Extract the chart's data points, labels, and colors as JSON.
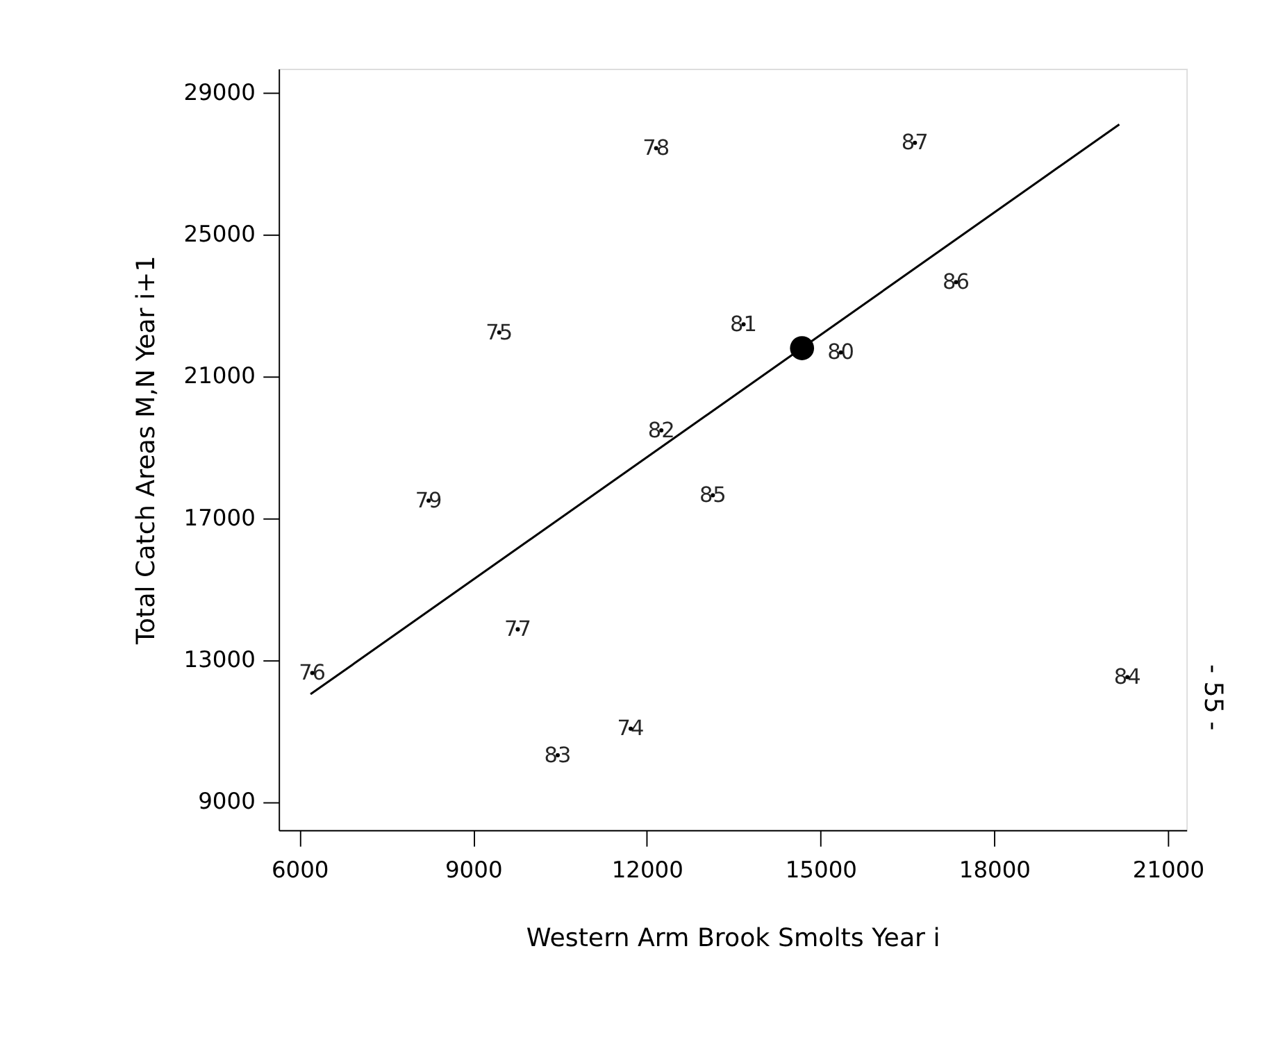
{
  "chart_data": {
    "type": "scatter",
    "xlabel": "Western Arm Brook Smolts Year i",
    "ylabel": "Total Catch Areas M,N Year i+1",
    "xlim": [
      5640,
      21320
    ],
    "ylim": [
      8200,
      29670
    ],
    "xticks": [
      6000,
      9000,
      12000,
      15000,
      18000,
      21000
    ],
    "yticks": [
      9000,
      13000,
      17000,
      21000,
      25000,
      29000
    ],
    "grid": false,
    "series": [
      {
        "type": "scatter",
        "color": "#000000",
        "marker": "circle",
        "x": [
          14680
        ],
        "values": [
          21790
        ]
      },
      {
        "type": "line",
        "color": "#000000",
        "marker": "none",
        "line_style": "solid",
        "x": [
          6190,
          20160
        ],
        "values": [
          12030,
          28100
        ]
      },
      {
        "name": "74",
        "color": "#000000",
        "marker": "circle",
        "x": [
          11720
        ],
        "values": [
          11060
        ]
      },
      {
        "name": "75",
        "color": "#000000",
        "marker": "circle",
        "x": [
          9450
        ],
        "values": [
          22230
        ]
      },
      {
        "name": "76",
        "color": "#000000",
        "marker": "circle",
        "x": [
          6220
        ],
        "values": [
          12630
        ]
      },
      {
        "name": "77",
        "color": "#000000",
        "marker": "circle",
        "x": [
          9770
        ],
        "values": [
          13860
        ]
      },
      {
        "name": "78",
        "color": "#000000",
        "marker": "circle",
        "x": [
          12160
        ],
        "values": [
          27430
        ]
      },
      {
        "name": "79",
        "color": "#000000",
        "marker": "circle",
        "x": [
          8230
        ],
        "values": [
          17490
        ]
      },
      {
        "name": "80",
        "color": "#000000",
        "marker": "circle",
        "x": [
          15350
        ],
        "values": [
          21670
        ]
      },
      {
        "name": "81",
        "color": "#000000",
        "marker": "circle",
        "x": [
          13670
        ],
        "values": [
          22460
        ]
      },
      {
        "name": "82",
        "color": "#000000",
        "marker": "circle",
        "x": [
          12250
        ],
        "values": [
          19470
        ]
      },
      {
        "name": "83",
        "color": "#000000",
        "marker": "circle",
        "x": [
          10460
        ],
        "values": [
          10310
        ]
      },
      {
        "name": "84",
        "color": "#000000",
        "marker": "circle",
        "x": [
          20300
        ],
        "values": [
          12510
        ]
      },
      {
        "name": "85",
        "color": "#000000",
        "marker": "circle",
        "x": [
          13140
        ],
        "values": [
          17640
        ]
      },
      {
        "name": "86",
        "color": "#000000",
        "marker": "circle",
        "x": [
          17340
        ],
        "values": [
          23650
        ]
      },
      {
        "name": "87",
        "color": "#000000",
        "marker": "circle",
        "x": [
          16630
        ],
        "values": [
          27580
        ]
      }
    ],
    "annotations": [
      "- 55 -"
    ]
  }
}
